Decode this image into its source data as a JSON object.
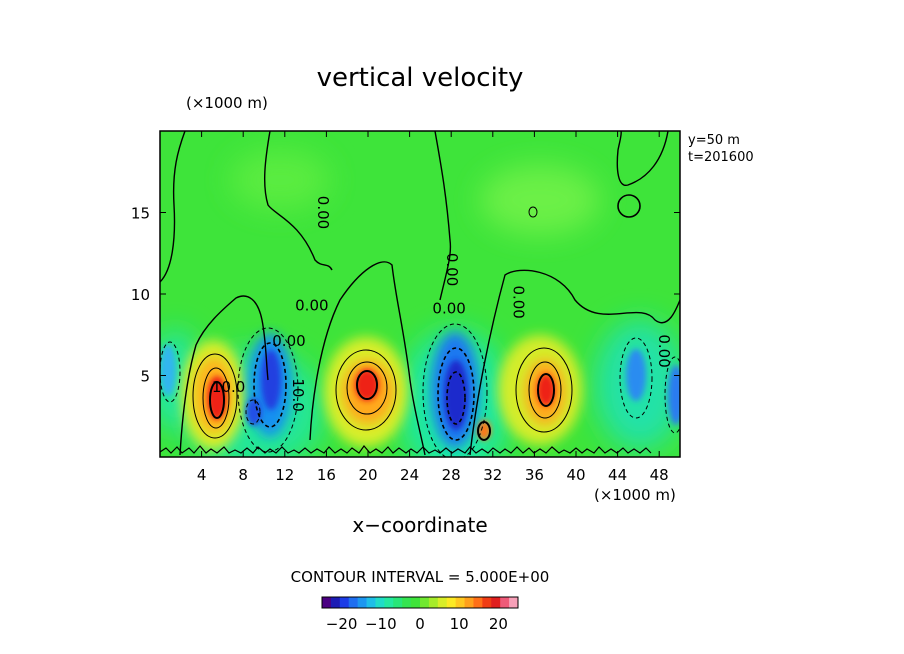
{
  "chart_data": {
    "type": "heatmap",
    "title": "vertical velocity",
    "y_unit_label": "(×1000 m)",
    "x_unit_label": "(×1000 m)",
    "xlabel": "x−coordinate",
    "annotation_lines": [
      "y=50 m",
      "t=201600"
    ],
    "contour_interval_text": "CONTOUR INTERVAL = 5.000E+00",
    "xlim": [
      0,
      50
    ],
    "ylim": [
      0,
      20
    ],
    "x_ticks": [
      "4",
      "8",
      "12",
      "16",
      "20",
      "24",
      "28",
      "32",
      "36",
      "40",
      "44",
      "48"
    ],
    "y_ticks": [
      "5",
      "10",
      "15"
    ],
    "contour_labels": [
      {
        "text": "0.00",
        "x": 15.2,
        "y": 15.0
      },
      {
        "text": "0.00",
        "x": 14.6,
        "y": 9.0
      },
      {
        "text": "0.00",
        "x": 27.6,
        "y": 11.5
      },
      {
        "text": "0.00",
        "x": 27.8,
        "y": 8.8
      },
      {
        "text": "0.00",
        "x": 34.0,
        "y": 9.5
      },
      {
        "text": "0.00",
        "x": 12.4,
        "y": 6.8
      },
      {
        "text": "0.00",
        "x": 48.0,
        "y": 6.5
      },
      {
        "text": "10.0",
        "x": 6.6,
        "y": 4.0
      },
      {
        "text": "10.0",
        "x": 12.8,
        "y": 3.8
      }
    ],
    "features": [
      {
        "kind": "updraft",
        "x": 5.5,
        "z": 3.5,
        "peak": 20
      },
      {
        "kind": "downdraft",
        "x": 11.0,
        "z": 4.0,
        "peak": -18
      },
      {
        "kind": "updraft",
        "x": 19.5,
        "z": 4.0,
        "peak": 21
      },
      {
        "kind": "downdraft",
        "x": 28.0,
        "z": 4.5,
        "peak": -22
      },
      {
        "kind": "updraft",
        "x": 37.0,
        "z": 4.0,
        "peak": 21
      },
      {
        "kind": "downdraft",
        "x": 46.0,
        "z": 5.0,
        "peak": -12
      }
    ],
    "colorbar": {
      "range": [
        -25,
        25
      ],
      "tick_labels": [
        "−20",
        "−10",
        "0",
        "10",
        "20"
      ],
      "tick_values": [
        -20,
        -10,
        0,
        10,
        20
      ]
    }
  }
}
